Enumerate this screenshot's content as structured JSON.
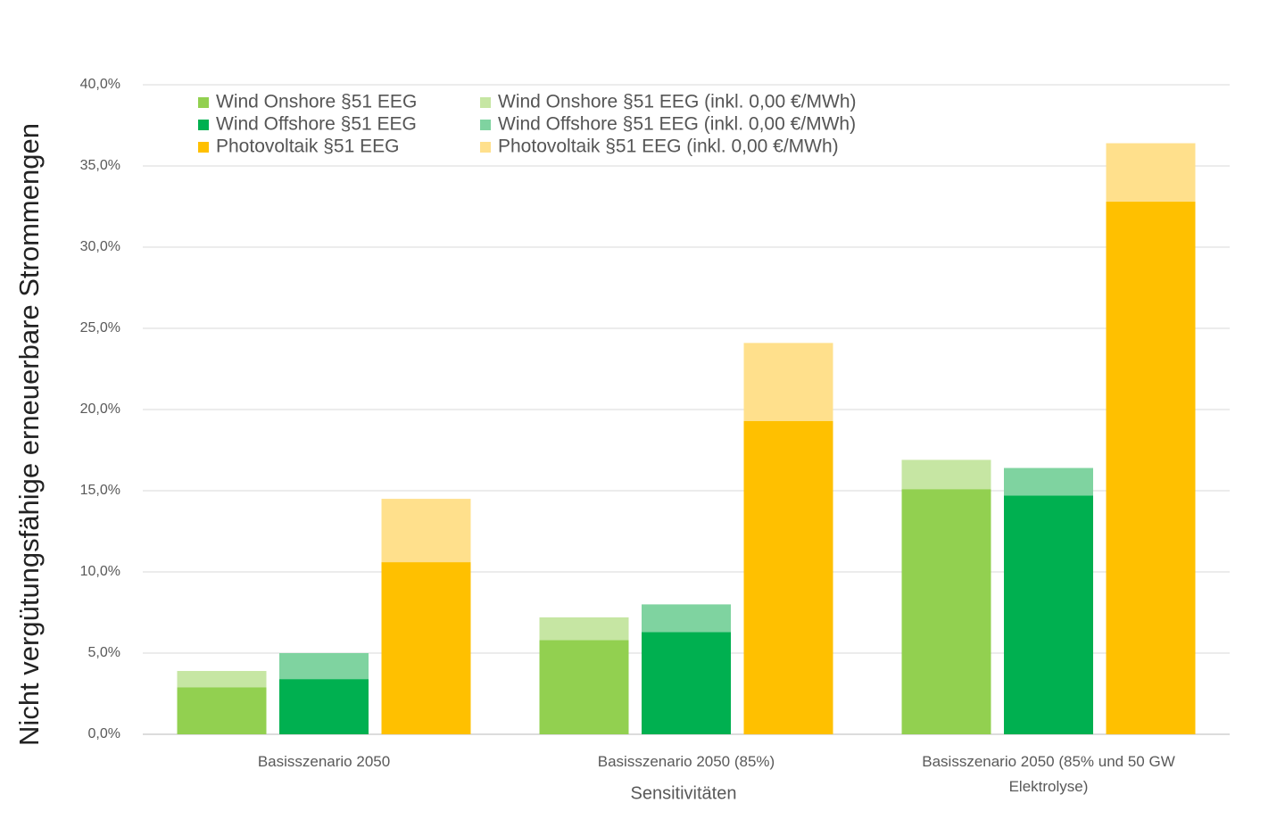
{
  "chart_data": {
    "type": "bar",
    "y_axis_label": "Nicht vergütungsfähige erneuerbare Strommengen",
    "x_axis_label": "Sensitivitäten",
    "categories": [
      "Basisszenario 2050",
      "Basisszenario 2050 (85%)",
      "Basisszenario 2050 (85% und 50 GW Elektrolyse)"
    ],
    "series": [
      {
        "name": "Wind Onshore §51 EEG",
        "color": "#92d050",
        "values": [
          2.9,
          5.8,
          15.1
        ]
      },
      {
        "name": "Wind Onshore §51 EEG (inkl. 0,00 €/MWh)",
        "color": "#c6e6a3",
        "values": [
          1.0,
          1.4,
          1.8
        ]
      },
      {
        "name": "Wind Offshore §51 EEG",
        "color": "#00b050",
        "values": [
          3.4,
          6.3,
          14.7
        ]
      },
      {
        "name": "Wind Offshore §51 EEG (inkl. 0,00 €/MWh)",
        "color": "#7fd3a0",
        "values": [
          1.6,
          1.7,
          1.7
        ]
      },
      {
        "name": "Photovoltaik §51 EEG",
        "color": "#ffc000",
        "values": [
          10.6,
          19.3,
          32.8
        ]
      },
      {
        "name": "Photovoltaik §51 EEG (inkl. 0,00 €/MWh)",
        "color": "#ffe08c",
        "values": [
          3.9,
          4.8,
          3.6
        ]
      }
    ],
    "ylim": [
      0,
      40
    ],
    "yticks": [
      {
        "value": 0,
        "label": "0,0%"
      },
      {
        "value": 5,
        "label": "5,0%"
      },
      {
        "value": 10,
        "label": "10,0%"
      },
      {
        "value": 15,
        "label": "15,0%"
      },
      {
        "value": 20,
        "label": "20,0%"
      },
      {
        "value": 25,
        "label": "25,0%"
      },
      {
        "value": 30,
        "label": "30,0%"
      },
      {
        "value": 35,
        "label": "35,0%"
      },
      {
        "value": 40,
        "label": "40,0%"
      }
    ],
    "grid": true
  }
}
